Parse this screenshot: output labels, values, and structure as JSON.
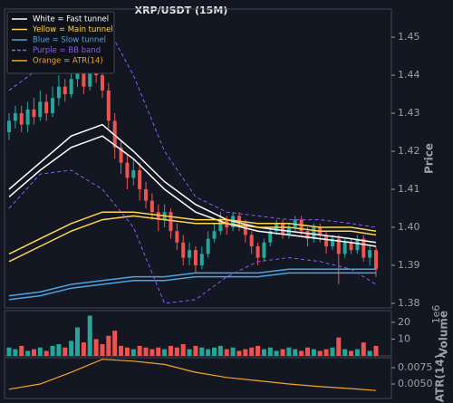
{
  "chart_data": [
    {
      "type": "candlestick",
      "title": "XRP/USDT (15M)",
      "ylabel": "Price",
      "ylim": [
        1.3788,
        1.4574
      ],
      "yticks": [
        1.38,
        1.39,
        {
          "value": 1.4,
          "label": "1.40"
        },
        1.41,
        1.42,
        1.43,
        1.44,
        1.45
      ],
      "up_color": "#26a69a",
      "down_color": "#ef5350",
      "open": [
        1.425,
        1.428,
        1.43,
        1.427,
        1.431,
        1.429,
        1.433,
        1.43,
        1.434,
        1.437,
        1.435,
        1.439,
        1.441,
        1.437,
        1.443,
        1.44,
        1.436,
        1.428,
        1.421,
        1.417,
        1.413,
        1.415,
        1.41,
        1.407,
        1.404,
        1.402,
        1.404,
        1.399,
        1.396,
        1.392,
        1.394,
        1.39,
        1.393,
        1.397,
        1.399,
        1.402,
        1.4,
        1.403,
        1.401,
        1.398,
        1.395,
        1.392,
        1.396,
        1.399,
        1.401,
        1.398,
        1.4,
        1.402,
        1.399,
        1.397,
        1.4,
        1.398,
        1.395,
        1.397,
        1.393,
        1.396,
        1.394,
        1.397,
        1.392,
        1.394
      ],
      "high": [
        1.43,
        1.432,
        1.432,
        1.433,
        1.434,
        1.436,
        1.435,
        1.437,
        1.44,
        1.439,
        1.442,
        1.445,
        1.443,
        1.446,
        1.445,
        1.442,
        1.438,
        1.43,
        1.423,
        1.419,
        1.418,
        1.417,
        1.412,
        1.409,
        1.406,
        1.406,
        1.405,
        1.401,
        1.398,
        1.396,
        1.395,
        1.395,
        1.399,
        1.401,
        1.404,
        1.403,
        1.404,
        1.404,
        1.402,
        1.399,
        1.396,
        1.397,
        1.4,
        1.402,
        1.402,
        1.401,
        1.403,
        1.403,
        1.4,
        1.401,
        1.401,
        1.399,
        1.398,
        1.398,
        1.397,
        1.397,
        1.398,
        1.398,
        1.395,
        1.395
      ],
      "low": [
        1.423,
        1.426,
        1.425,
        1.425,
        1.427,
        1.428,
        1.428,
        1.429,
        1.432,
        1.433,
        1.434,
        1.437,
        1.435,
        1.436,
        1.438,
        1.434,
        1.426,
        1.418,
        1.414,
        1.41,
        1.411,
        1.407,
        1.405,
        1.402,
        1.399,
        1.4,
        1.397,
        1.394,
        1.39,
        1.39,
        1.388,
        1.389,
        1.392,
        1.396,
        1.398,
        1.398,
        1.399,
        1.399,
        1.396,
        1.393,
        1.39,
        1.391,
        1.395,
        1.398,
        1.397,
        1.397,
        1.399,
        1.398,
        1.395,
        1.396,
        1.396,
        1.393,
        1.394,
        1.385,
        1.392,
        1.393,
        1.393,
        1.391,
        1.39,
        1.387
      ],
      "close": [
        1.428,
        1.43,
        1.427,
        1.431,
        1.429,
        1.433,
        1.43,
        1.434,
        1.437,
        1.435,
        1.439,
        1.441,
        1.437,
        1.443,
        1.44,
        1.436,
        1.428,
        1.421,
        1.417,
        1.413,
        1.415,
        1.41,
        1.407,
        1.404,
        1.402,
        1.404,
        1.399,
        1.396,
        1.392,
        1.394,
        1.39,
        1.393,
        1.397,
        1.399,
        1.402,
        1.4,
        1.403,
        1.401,
        1.398,
        1.395,
        1.392,
        1.396,
        1.399,
        1.401,
        1.398,
        1.4,
        1.402,
        1.399,
        1.397,
        1.4,
        1.398,
        1.395,
        1.397,
        1.393,
        1.396,
        1.394,
        1.397,
        1.392,
        1.394,
        1.389
      ],
      "overlay_x": [
        0,
        5,
        10,
        15,
        20,
        25,
        30,
        35,
        40,
        45,
        50,
        55,
        59
      ],
      "series": [
        {
          "name": "White = Fast tunnel",
          "color": "#ffffff",
          "dash": false,
          "lines": [
            [
              1.41,
              1.417,
              1.424,
              1.427,
              1.42,
              1.412,
              1.406,
              1.402,
              1.4,
              1.399,
              1.398,
              1.397,
              1.396
            ],
            [
              1.408,
              1.415,
              1.421,
              1.424,
              1.418,
              1.41,
              1.404,
              1.401,
              1.399,
              1.398,
              1.397,
              1.396,
              1.395
            ]
          ]
        },
        {
          "name": "Yellow = Main tunnel",
          "color": "#ffd54f",
          "dash": false,
          "lines": [
            [
              1.393,
              1.397,
              1.401,
              1.404,
              1.404,
              1.403,
              1.402,
              1.402,
              1.401,
              1.401,
              1.4,
              1.4,
              1.399
            ],
            [
              1.391,
              1.395,
              1.399,
              1.402,
              1.403,
              1.402,
              1.401,
              1.401,
              1.4,
              1.4,
              1.399,
              1.399,
              1.398
            ]
          ]
        },
        {
          "name": "Blue = Slow tunnel",
          "color": "#4fa3e0",
          "dash": false,
          "lines": [
            [
              1.382,
              1.383,
              1.385,
              1.386,
              1.387,
              1.387,
              1.388,
              1.388,
              1.388,
              1.389,
              1.389,
              1.389,
              1.389
            ],
            [
              1.381,
              1.382,
              1.384,
              1.385,
              1.386,
              1.386,
              1.387,
              1.387,
              1.387,
              1.388,
              1.388,
              1.388,
              1.388
            ]
          ]
        },
        {
          "name": "Purple = BB band",
          "color": "#8a5cf6",
          "dash": true,
          "lines": [
            [
              1.436,
              1.442,
              1.45,
              1.455,
              1.44,
              1.42,
              1.408,
              1.404,
              1.403,
              1.402,
              1.402,
              1.401,
              1.4
            ],
            [
              1.405,
              1.414,
              1.415,
              1.41,
              1.4,
              1.38,
              1.381,
              1.387,
              1.391,
              1.392,
              1.391,
              1.389,
              1.385
            ]
          ]
        }
      ]
    },
    {
      "type": "bar",
      "ylabel": "Volume",
      "offset_label": "1e6",
      "ylim": [
        0,
        27
      ],
      "yticks": [
        10,
        20
      ],
      "values": [
        5,
        4,
        6,
        3,
        4,
        5,
        3,
        6,
        7,
        5,
        9,
        17,
        8,
        24,
        10,
        7,
        12,
        15,
        6,
        5,
        4,
        6,
        5,
        4,
        5,
        4,
        6,
        5,
        7,
        4,
        6,
        5,
        4,
        5,
        6,
        4,
        5,
        3,
        4,
        5,
        6,
        4,
        5,
        3,
        4,
        5,
        4,
        3,
        5,
        4,
        3,
        4,
        5,
        11,
        4,
        3,
        4,
        8,
        3,
        6
      ]
    },
    {
      "type": "line",
      "ylabel": "ATR(14)",
      "ylim": [
        0.00278,
        0.00903
      ],
      "yticks": [
        {
          "value": 0.005,
          "label": "0.0050"
        },
        {
          "value": 0.0075,
          "label": "0.0075"
        }
      ],
      "series": [
        {
          "name": "Orange = ATR(14)",
          "color": "#f5a623",
          "x": [
            0,
            5,
            10,
            15,
            20,
            25,
            30,
            35,
            40,
            45,
            50,
            55,
            59
          ],
          "values": [
            0.0042,
            0.005,
            0.0068,
            0.0088,
            0.0085,
            0.008,
            0.0068,
            0.006,
            0.0055,
            0.005,
            0.0046,
            0.0043,
            0.004
          ]
        }
      ]
    }
  ]
}
